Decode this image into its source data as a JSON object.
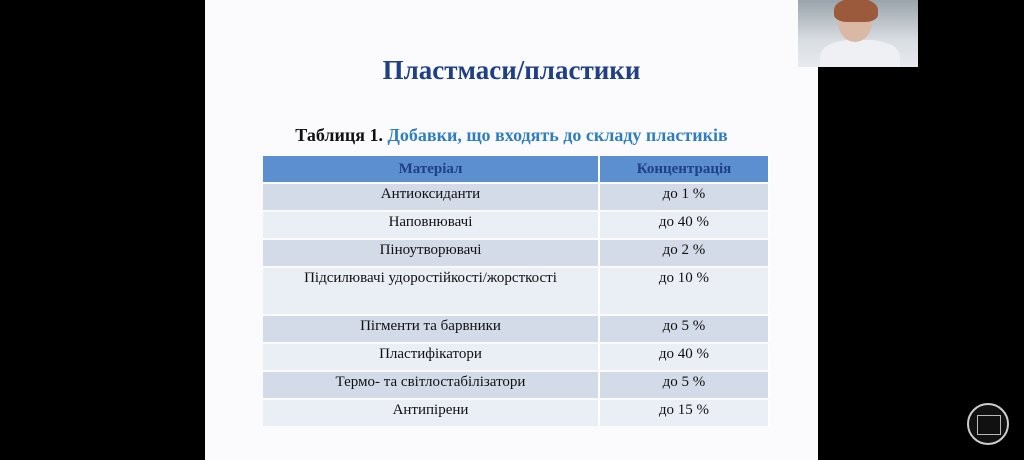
{
  "slide": {
    "title": "Пластмаси/пластики",
    "caption_prefix": "Таблиця 1.",
    "caption_text": "Добавки, що входять до складу пластиків",
    "table": {
      "headers": [
        "Матеріал",
        "Концентрація"
      ],
      "rows": [
        [
          "Антиоксиданти",
          "до 1 %"
        ],
        [
          "Наповнювачі",
          "до 40 %"
        ],
        [
          "Піноутворювачі",
          "до 2 %"
        ],
        [
          "Підсилювачі удоростійкості/жорсткості",
          "до 10 %"
        ],
        [
          "Пігменти та барвники",
          "до 5 %"
        ],
        [
          "Пластифікатори",
          "до 40 %"
        ],
        [
          "Термо- та світлостабілізатори",
          "до 5 %"
        ],
        [
          "Антипірени",
          "до 15 %"
        ]
      ]
    }
  },
  "colors": {
    "title": "#1f3f86",
    "caption_accent": "#2f7fc0",
    "header_bg": "#5b8fcf",
    "row_odd": "#d3dbe9",
    "row_even": "#eaeef5"
  },
  "icons": {
    "webcam": "participant-video",
    "logo": "university-seal"
  }
}
